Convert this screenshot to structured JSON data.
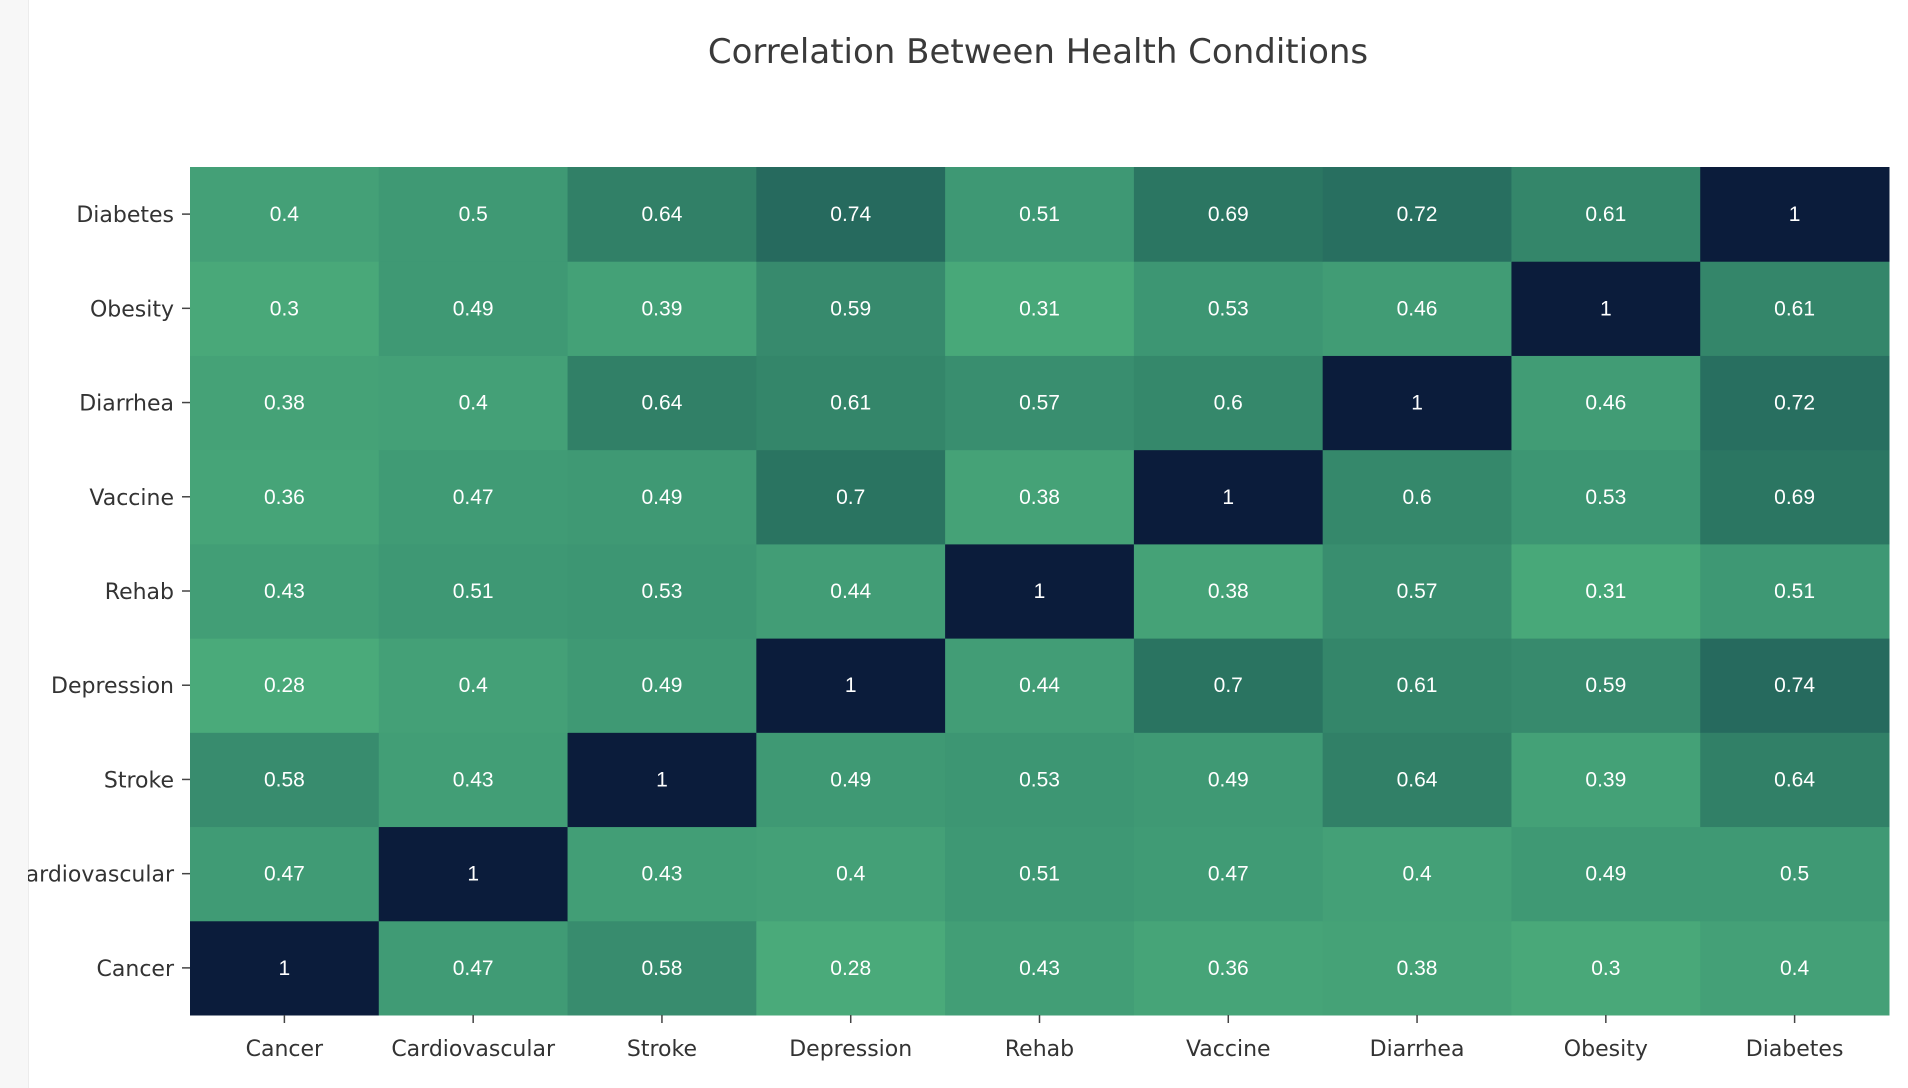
{
  "chart_data": {
    "type": "heatmap",
    "title": "Correlation Between Health Conditions",
    "x_categories": [
      "Cancer",
      "Cardiovascular",
      "Stroke",
      "Depression",
      "Rehab",
      "Vaccine",
      "Diarrhea",
      "Obesity",
      "Diabetes"
    ],
    "y_categories": [
      "Cancer",
      "Cardiovascular",
      "Stroke",
      "Depression",
      "Rehab",
      "Vaccine",
      "Diarrhea",
      "Obesity",
      "Diabetes"
    ],
    "z": [
      [
        1,
        0.47,
        0.58,
        0.28,
        0.43,
        0.36,
        0.38,
        0.3,
        0.4
      ],
      [
        0.47,
        1,
        0.43,
        0.4,
        0.51,
        0.47,
        0.4,
        0.49,
        0.5
      ],
      [
        0.58,
        0.43,
        1,
        0.49,
        0.53,
        0.49,
        0.64,
        0.39,
        0.64
      ],
      [
        0.28,
        0.4,
        0.49,
        1,
        0.44,
        0.7,
        0.61,
        0.59,
        0.74
      ],
      [
        0.43,
        0.51,
        0.53,
        0.44,
        1,
        0.38,
        0.57,
        0.31,
        0.51
      ],
      [
        0.36,
        0.47,
        0.49,
        0.7,
        0.38,
        1,
        0.6,
        0.53,
        0.69
      ],
      [
        0.38,
        0.4,
        0.64,
        0.61,
        0.57,
        0.6,
        1,
        0.46,
        0.72
      ],
      [
        0.3,
        0.49,
        0.39,
        0.59,
        0.31,
        0.53,
        0.46,
        1,
        0.61
      ],
      [
        0.4,
        0.5,
        0.64,
        0.74,
        0.51,
        0.69,
        0.72,
        0.61,
        1
      ]
    ],
    "colorscale": [
      [
        0.0,
        "#4aaa7a"
      ],
      [
        0.35,
        "#3d9673"
      ],
      [
        0.55,
        "#2d7963"
      ],
      [
        0.75,
        "#1d5858"
      ],
      [
        0.88,
        "#173e4c"
      ],
      [
        1.0,
        "#0b1c3b"
      ]
    ],
    "color_range": [
      0.28,
      1
    ],
    "text_color": "#ffffff",
    "showscale": false
  }
}
